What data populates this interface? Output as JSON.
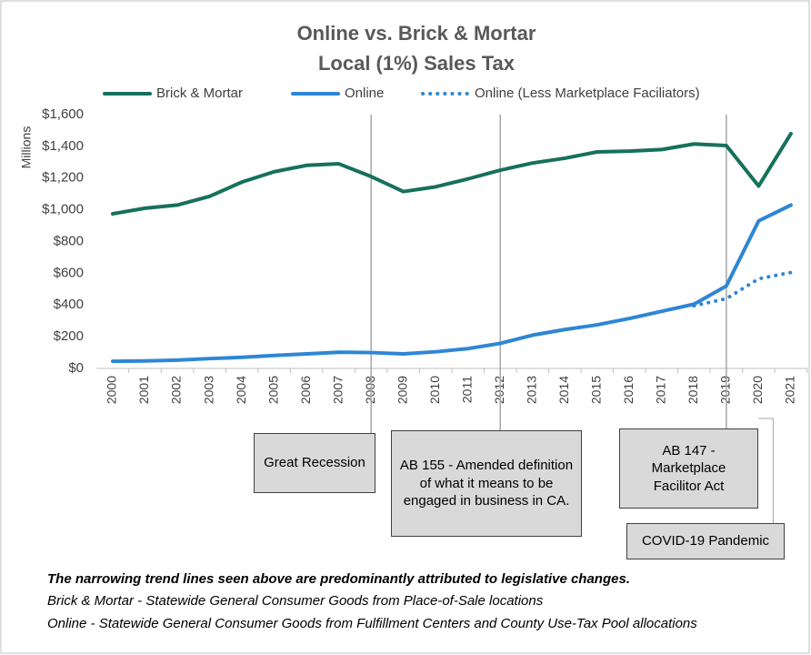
{
  "chart_data": {
    "type": "line",
    "title": "Online vs. Brick & Mortar",
    "subtitle": "Local (1%) Sales Tax",
    "y_axis_label": "Millions",
    "categories": [
      "2000",
      "2001",
      "2002",
      "2003",
      "2004",
      "2005",
      "2006",
      "2007",
      "2008",
      "2009",
      "2010",
      "2011",
      "2012",
      "2013",
      "2014",
      "2015",
      "2016",
      "2017",
      "2018",
      "2019",
      "2020",
      "2021"
    ],
    "series": [
      {
        "name": "Brick & Mortar",
        "color": "#16705c",
        "style": "solid",
        "values": [
          975,
          1010,
          1030,
          1085,
          1175,
          1240,
          1280,
          1290,
          1210,
          1115,
          1145,
          1195,
          1250,
          1295,
          1325,
          1365,
          1370,
          1380,
          1415,
          1405,
          1150,
          1480
        ]
      },
      {
        "name": "Online",
        "color": "#2e86d4",
        "style": "solid",
        "values": [
          45,
          47,
          52,
          62,
          70,
          82,
          92,
          102,
          100,
          92,
          105,
          125,
          158,
          210,
          245,
          275,
          315,
          360,
          405,
          520,
          930,
          1030
        ]
      },
      {
        "name": "Online (Less Marketplace Faciliators)",
        "color": "#2e86d4",
        "style": "dotted",
        "values": [
          null,
          null,
          null,
          null,
          null,
          null,
          null,
          null,
          null,
          null,
          null,
          null,
          null,
          null,
          null,
          null,
          null,
          null,
          395,
          440,
          565,
          605
        ]
      }
    ],
    "ylim": [
      0,
      1600
    ],
    "yticks": [
      {
        "value": 0,
        "label": "$0"
      },
      {
        "value": 200,
        "label": "$200"
      },
      {
        "value": 400,
        "label": "$400"
      },
      {
        "value": 600,
        "label": "$600"
      },
      {
        "value": 800,
        "label": "$800"
      },
      {
        "value": 1000,
        "label": "$1,000"
      },
      {
        "value": 1200,
        "label": "$1,200"
      },
      {
        "value": 1400,
        "label": "$1,400"
      },
      {
        "value": 1600,
        "label": "$1,600"
      }
    ],
    "annotations": [
      "Great Recession",
      "AB 155 - Amended definition of what it means to be engaged in business in CA.",
      "AB 147 - Marketplace Facilitor Act",
      "COVID-19 Pandemic"
    ],
    "notes": [
      "The narrowing trend lines seen above are predominantly attributed to legislative changes.",
      "Brick & Mortar - Statewide General Consumer Goods from Place-of-Sale locations",
      "Online - Statewide General Consumer Goods from Fulfillment Centers and County Use-Tax Pool allocations"
    ]
  }
}
